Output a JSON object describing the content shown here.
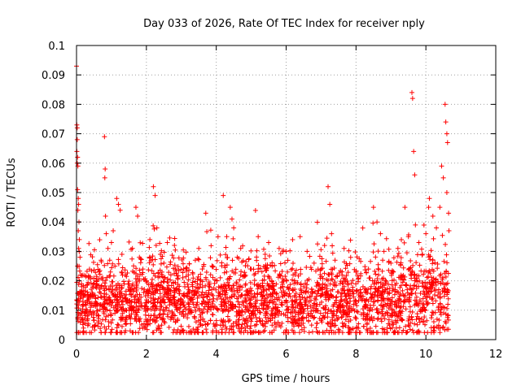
{
  "chart_data": {
    "type": "scatter",
    "title": "Day 033 of 2026, Rate Of TEC Index for receiver nply",
    "xlabel": "GPS time / hours",
    "ylabel": "ROTI / TECUs",
    "xlim": [
      0,
      12
    ],
    "ylim": [
      0,
      0.1
    ],
    "x_ticks": [
      0,
      2,
      4,
      6,
      8,
      10,
      12
    ],
    "x_tick_labels": [
      "0",
      "2",
      "4",
      "6",
      "8",
      "10",
      "12"
    ],
    "y_ticks": [
      0,
      0.01,
      0.02,
      0.03,
      0.04,
      0.05,
      0.06,
      0.07,
      0.08,
      0.09,
      0.1
    ],
    "y_tick_labels": [
      "0",
      "0.01",
      "0.02",
      "0.03",
      "0.04",
      "0.05",
      "0.06",
      "0.07",
      "0.08",
      "0.09",
      "0.1"
    ],
    "grid": true,
    "marker": "+",
    "color": "#ff0000",
    "points": [
      [
        0.0,
        0.093
      ],
      [
        0.01,
        0.073
      ],
      [
        0.02,
        0.072
      ],
      [
        0.02,
        0.068
      ],
      [
        0.01,
        0.064
      ],
      [
        0.03,
        0.062
      ],
      [
        0.02,
        0.06
      ],
      [
        0.04,
        0.059
      ],
      [
        0.03,
        0.051
      ],
      [
        0.05,
        0.048
      ],
      [
        0.06,
        0.046
      ],
      [
        0.04,
        0.044
      ],
      [
        0.07,
        0.04
      ],
      [
        0.05,
        0.037
      ],
      [
        0.08,
        0.034
      ],
      [
        0.06,
        0.031
      ],
      [
        0.1,
        0.028
      ],
      [
        0.03,
        0.025
      ],
      [
        0.12,
        0.022
      ],
      [
        0.08,
        0.02
      ],
      [
        0.15,
        0.018
      ],
      [
        0.2,
        0.015
      ],
      [
        0.25,
        0.012
      ],
      [
        0.3,
        0.01
      ],
      [
        0.35,
        0.013
      ],
      [
        0.4,
        0.011
      ],
      [
        0.45,
        0.016
      ],
      [
        0.5,
        0.009
      ],
      [
        0.55,
        0.014
      ],
      [
        0.6,
        0.012
      ],
      [
        0.7,
        0.018
      ],
      [
        0.75,
        0.021
      ],
      [
        0.8,
        0.069
      ],
      [
        0.82,
        0.058
      ],
      [
        0.81,
        0.055
      ],
      [
        0.83,
        0.042
      ],
      [
        0.85,
        0.036
      ],
      [
        0.9,
        0.031
      ],
      [
        0.95,
        0.027
      ],
      [
        1.0,
        0.033
      ],
      [
        1.05,
        0.037
      ],
      [
        1.1,
        0.025
      ],
      [
        1.15,
        0.048
      ],
      [
        1.2,
        0.046
      ],
      [
        1.25,
        0.044
      ],
      [
        1.3,
        0.029
      ],
      [
        1.4,
        0.022
      ],
      [
        1.5,
        0.019
      ],
      [
        1.6,
        0.031
      ],
      [
        1.7,
        0.045
      ],
      [
        1.75,
        0.042
      ],
      [
        1.8,
        0.028
      ],
      [
        1.9,
        0.024
      ],
      [
        2.0,
        0.02
      ],
      [
        2.1,
        0.034
      ],
      [
        2.2,
        0.052
      ],
      [
        2.25,
        0.049
      ],
      [
        2.3,
        0.038
      ],
      [
        2.4,
        0.029
      ],
      [
        2.5,
        0.026
      ],
      [
        2.6,
        0.033
      ],
      [
        2.7,
        0.022
      ],
      [
        2.8,
        0.016
      ],
      [
        2.9,
        0.013
      ],
      [
        3.0,
        0.012
      ],
      [
        3.1,
        0.018
      ],
      [
        3.2,
        0.022
      ],
      [
        3.3,
        0.016
      ],
      [
        3.4,
        0.027
      ],
      [
        3.5,
        0.031
      ],
      [
        3.6,
        0.024
      ],
      [
        3.7,
        0.043
      ],
      [
        3.8,
        0.019
      ],
      [
        3.9,
        0.015
      ],
      [
        4.0,
        0.003
      ],
      [
        4.05,
        0.035
      ],
      [
        4.2,
        0.049
      ],
      [
        4.3,
        0.035
      ],
      [
        4.4,
        0.045
      ],
      [
        4.45,
        0.041
      ],
      [
        4.5,
        0.038
      ],
      [
        4.6,
        0.028
      ],
      [
        4.7,
        0.031
      ],
      [
        4.8,
        0.022
      ],
      [
        5.0,
        0.024
      ],
      [
        5.2,
        0.035
      ],
      [
        5.4,
        0.029
      ],
      [
        5.5,
        0.033
      ],
      [
        5.6,
        0.025
      ],
      [
        5.8,
        0.031
      ],
      [
        6.0,
        0.03
      ],
      [
        6.2,
        0.022
      ],
      [
        6.4,
        0.035
      ],
      [
        6.6,
        0.03
      ],
      [
        6.8,
        0.026
      ],
      [
        7.0,
        0.024
      ],
      [
        7.1,
        0.032
      ],
      [
        7.2,
        0.052
      ],
      [
        7.25,
        0.046
      ],
      [
        7.3,
        0.036
      ],
      [
        7.4,
        0.027
      ],
      [
        7.6,
        0.022
      ],
      [
        7.8,
        0.017
      ],
      [
        8.0,
        0.013
      ],
      [
        8.2,
        0.018
      ],
      [
        8.4,
        0.021
      ],
      [
        8.5,
        0.045
      ],
      [
        8.6,
        0.04
      ],
      [
        8.7,
        0.036
      ],
      [
        8.8,
        0.03
      ],
      [
        9.0,
        0.026
      ],
      [
        9.2,
        0.031
      ],
      [
        9.4,
        0.045
      ],
      [
        9.5,
        0.035
      ],
      [
        9.6,
        0.084
      ],
      [
        9.62,
        0.082
      ],
      [
        9.65,
        0.064
      ],
      [
        9.68,
        0.056
      ],
      [
        9.7,
        0.039
      ],
      [
        9.8,
        0.033
      ],
      [
        9.9,
        0.029
      ],
      [
        10.0,
        0.036
      ],
      [
        10.1,
        0.048
      ],
      [
        10.2,
        0.042
      ],
      [
        10.3,
        0.038
      ],
      [
        10.4,
        0.045
      ],
      [
        10.45,
        0.059
      ],
      [
        10.5,
        0.055
      ],
      [
        10.55,
        0.08
      ],
      [
        10.57,
        0.074
      ],
      [
        10.6,
        0.07
      ],
      [
        10.62,
        0.067
      ],
      [
        10.6,
        0.05
      ],
      [
        10.65,
        0.043
      ],
      [
        10.66,
        0.037
      ]
    ],
    "dense_band": {
      "x_range": [
        0,
        10.65
      ],
      "typical_y_range": [
        0.004,
        0.025
      ],
      "median_y": 0.012
    }
  }
}
